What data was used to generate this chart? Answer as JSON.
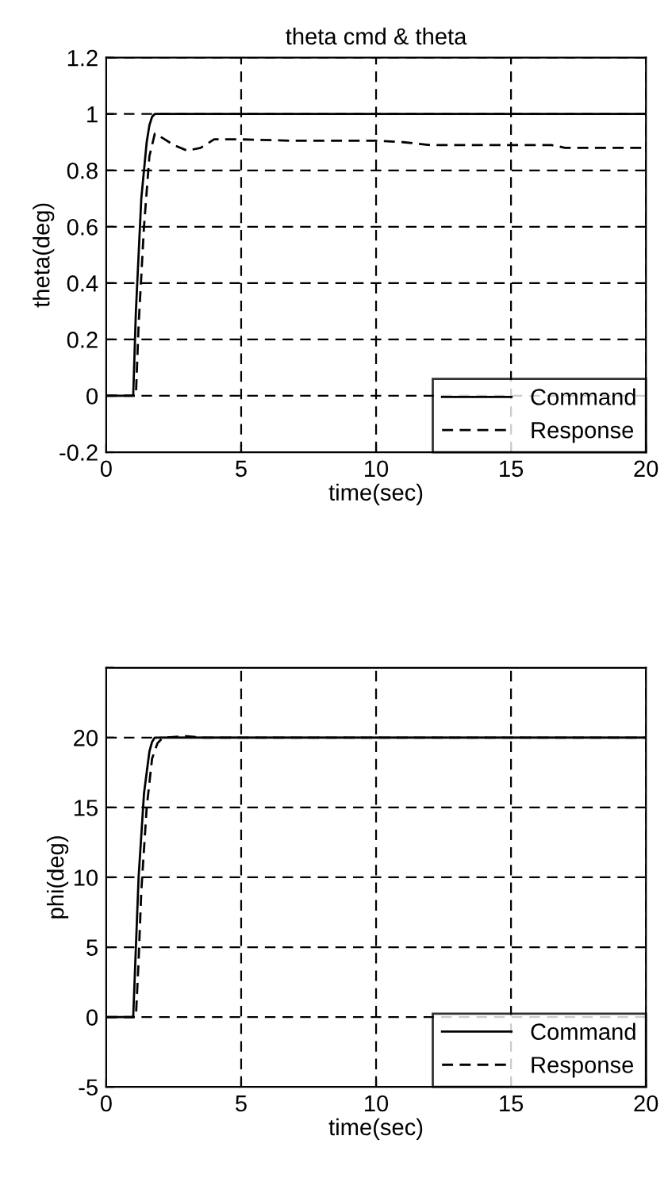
{
  "chart_data": [
    {
      "type": "line",
      "title": "theta cmd & theta",
      "xlabel": "time(sec)",
      "ylabel": "theta(deg)",
      "xlim": [
        0,
        20
      ],
      "ylim": [
        -0.2,
        1.2
      ],
      "xticks": [
        0,
        5,
        10,
        15,
        20
      ],
      "yticks": [
        -0.2,
        0,
        0.2,
        0.4,
        0.6,
        0.8,
        1,
        1.2
      ],
      "grid": true,
      "legend": "bottom right",
      "series": [
        {
          "name": "Command",
          "color": "#000000",
          "line_style": "solid",
          "x": [
            0,
            1.0,
            1.1,
            1.3,
            1.5,
            1.6,
            1.7,
            1.8,
            2.0,
            20
          ],
          "values": [
            0,
            0,
            0.3,
            0.7,
            0.9,
            0.96,
            0.99,
            1.0,
            1.0,
            1.0
          ]
        },
        {
          "name": "Response",
          "color": "#000000",
          "line_style": "dashed",
          "x": [
            0,
            1.1,
            1.2,
            1.4,
            1.6,
            1.8,
            2.0,
            2.5,
            3.0,
            3.5,
            4.0,
            5.0,
            7.0,
            10.0,
            11.0,
            12.0,
            14.0,
            16.0,
            16.5,
            17.0,
            20.0
          ],
          "values": [
            0,
            0,
            0.25,
            0.6,
            0.85,
            0.93,
            0.92,
            0.89,
            0.87,
            0.88,
            0.91,
            0.91,
            0.905,
            0.905,
            0.9,
            0.89,
            0.89,
            0.89,
            0.89,
            0.88,
            0.88
          ]
        }
      ]
    },
    {
      "type": "line",
      "xlabel": "time(sec)",
      "ylabel": "phi(deg)",
      "xlim": [
        0,
        20
      ],
      "ylim": [
        -5,
        25
      ],
      "xticks": [
        0,
        5,
        10,
        15,
        20
      ],
      "yticks": [
        -5,
        0,
        5,
        10,
        15,
        20,
        {
          "value": 25,
          "label": null
        }
      ],
      "grid": true,
      "legend": "bottom right",
      "series": [
        {
          "name": "Command",
          "color": "#000000",
          "line_style": "solid",
          "x": [
            0,
            1.0,
            1.1,
            1.2,
            1.4,
            1.6,
            1.7,
            1.8,
            2.0,
            20
          ],
          "values": [
            0,
            0,
            5,
            10,
            16,
            19,
            19.7,
            20,
            20,
            20
          ]
        },
        {
          "name": "Response",
          "color": "#000000",
          "line_style": "dashed",
          "x": [
            0,
            1.1,
            1.2,
            1.3,
            1.5,
            1.7,
            1.9,
            2.1,
            3.0,
            3.5,
            20
          ],
          "values": [
            0,
            0,
            4,
            9,
            15,
            18.5,
            19.6,
            20,
            20.1,
            20,
            20
          ]
        }
      ]
    }
  ]
}
